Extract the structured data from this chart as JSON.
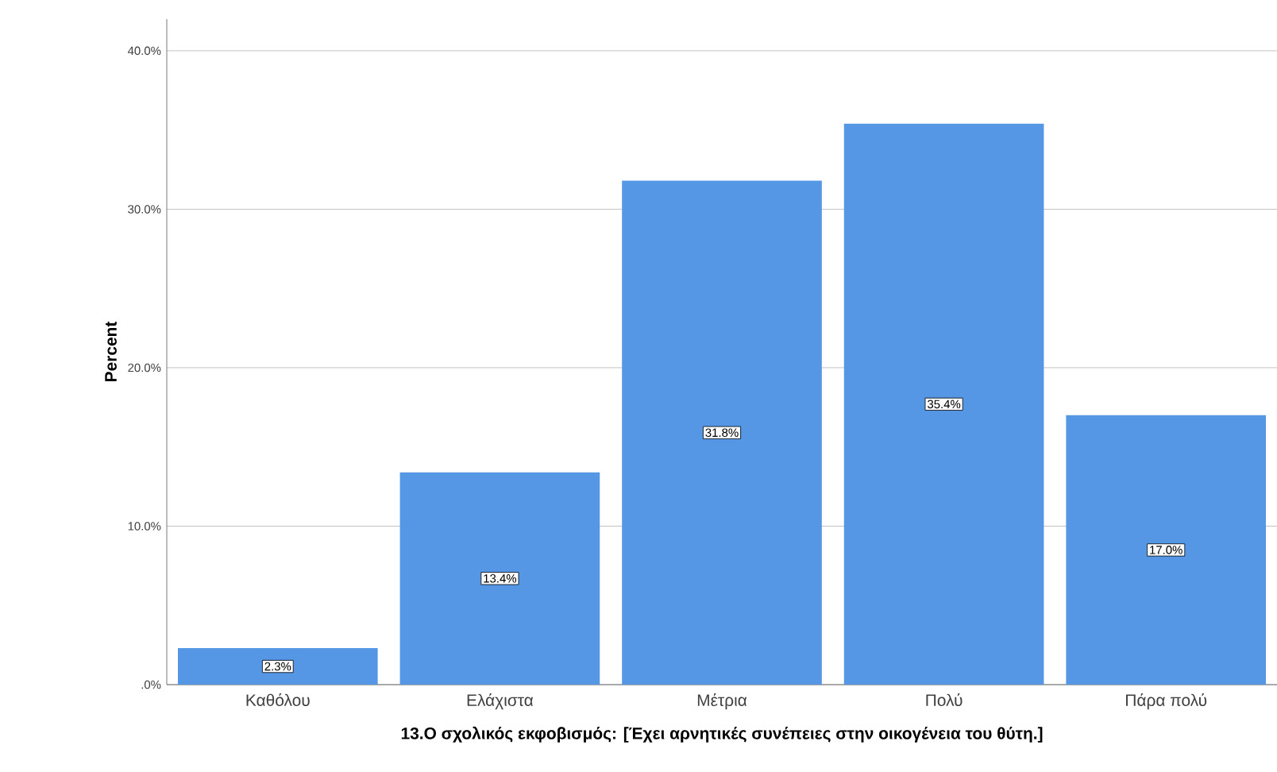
{
  "chart_data": {
    "type": "bar",
    "xlabel": "13.Ο σχολικός εκφοβισμός: [Έχει αρνητικές συνέπειες στην οικογένεια του θύτη.]",
    "ylabel": "Percent",
    "categories": [
      "Καθόλου",
      "Ελάχιστα",
      "Μέτρια",
      "Πολύ",
      "Πάρα πολύ"
    ],
    "values": [
      2.3,
      13.4,
      31.8,
      35.4,
      17.0
    ],
    "value_labels": [
      "2.3%",
      "13.4%",
      "31.8%",
      "35.4%",
      "17.0%"
    ],
    "color": "#5596e5",
    "ylim": [
      0,
      42
    ],
    "yticks": [
      {
        "value": 0,
        "label": ".0%"
      },
      {
        "value": 10,
        "label": "10.0%"
      },
      {
        "value": 20,
        "label": "20.0%"
      },
      {
        "value": 30,
        "label": "30.0%"
      },
      {
        "value": 40,
        "label": "40.0%"
      }
    ],
    "grid": "y"
  }
}
